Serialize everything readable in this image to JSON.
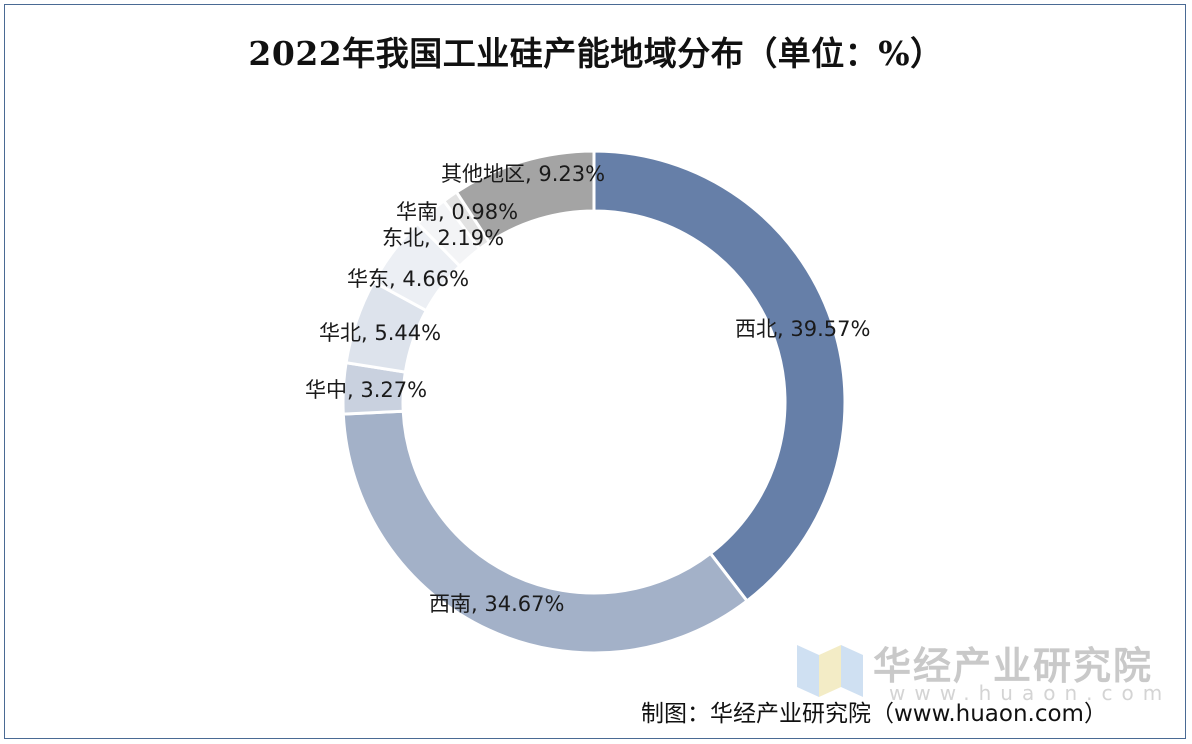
{
  "chart_data": {
    "type": "pie",
    "title": "2022年我国工业硅产能地域分布（单位：%）",
    "categories": [
      "西北",
      "西南",
      "华中",
      "华北",
      "华东",
      "东北",
      "华南",
      "其他地区"
    ],
    "values": [
      39.57,
      34.67,
      3.27,
      5.44,
      4.66,
      2.19,
      0.98,
      9.23
    ],
    "labels": [
      "西北, 39.57%",
      "西南, 34.67%",
      "华中, 3.27%",
      "华北, 5.44%",
      "华东, 4.66%",
      "东北, 2.19%",
      "华南, 0.98%",
      "其他地区, 9.23%"
    ],
    "colors": [
      "#667fa8",
      "#a3b1c8",
      "#c9d1df",
      "#dde3ec",
      "#eceff4",
      "#f3f4f6",
      "#e2e2e2",
      "#a4a4a4"
    ],
    "donut": true,
    "legend": "none"
  },
  "footer": {
    "source": "制图：华经产业研究院（www.huaon.com）"
  },
  "watermark": {
    "brand": "华经产业研究院",
    "url": "www.huaon.com"
  }
}
